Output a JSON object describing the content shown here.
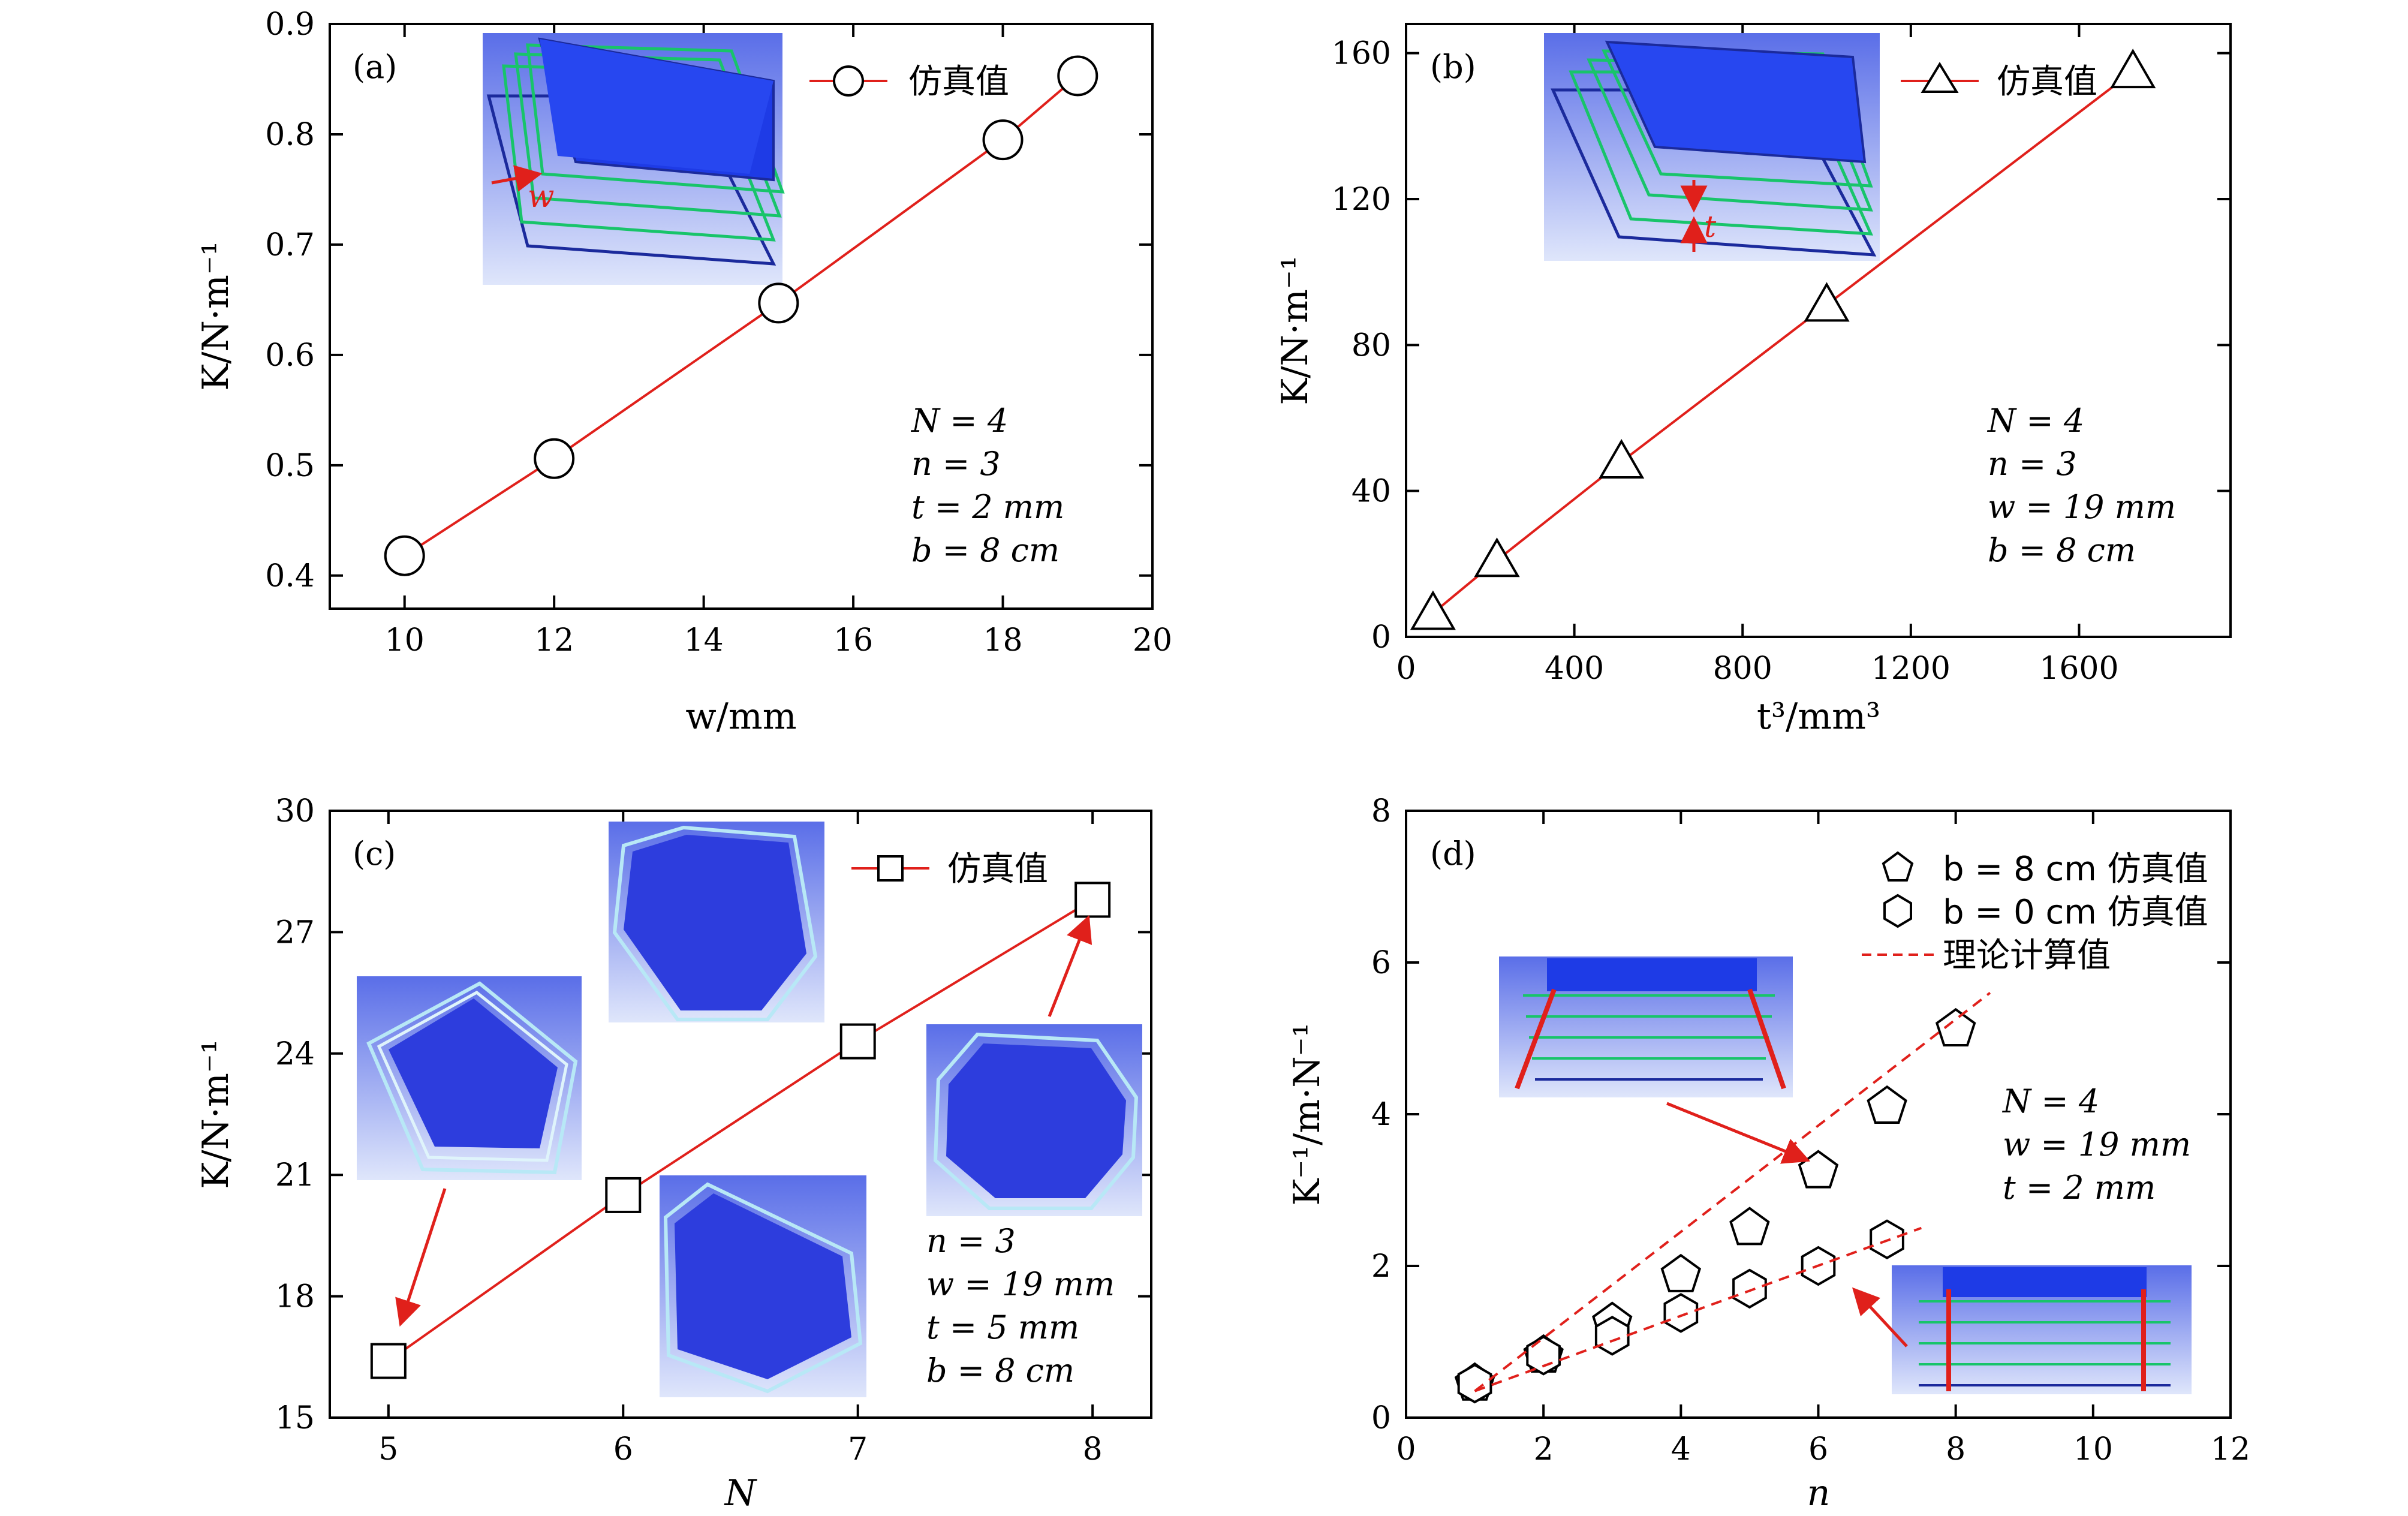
{
  "colors": {
    "line": "#e0201b",
    "inset_bg": "#2f3fd6",
    "inset_edge": "#18c46a"
  },
  "chart_data": [
    {
      "type": "line",
      "panel_label": "(a)",
      "xlabel": "w/mm",
      "ylabel": "K/N·m⁻¹",
      "xlim": [
        9,
        20
      ],
      "ylim": [
        0.37,
        0.9
      ],
      "xticks": [
        10,
        12,
        14,
        16,
        18,
        20
      ],
      "yticks": [
        0.4,
        0.5,
        0.6,
        0.7,
        0.8,
        0.9
      ],
      "xtick_labels": [
        "10",
        "12",
        "14",
        "16",
        "18",
        "20"
      ],
      "ytick_labels": [
        "0.4",
        "0.5",
        "0.6",
        "0.7",
        "0.8",
        "0.9"
      ],
      "series": [
        {
          "name": "仿真值",
          "marker": "circle",
          "x": [
            10,
            12,
            15,
            18,
            19
          ],
          "y": [
            0.418,
            0.506,
            0.647,
            0.795,
            0.853
          ]
        }
      ],
      "legend": [
        "仿真值"
      ],
      "inset_label": "w",
      "annotations": [
        "N = 4",
        "n = 3",
        "t = 2 mm",
        "b = 8 cm"
      ]
    },
    {
      "type": "line",
      "panel_label": "(b)",
      "xlabel": "t³/mm³",
      "ylabel": "K/N·m⁻¹",
      "xlim": [
        0,
        1960
      ],
      "ylim": [
        0,
        168
      ],
      "xticks": [
        0,
        400,
        800,
        1200,
        1600
      ],
      "yticks": [
        0,
        40,
        80,
        120,
        160
      ],
      "xtick_labels": [
        "0",
        "400",
        "800",
        "1200",
        "1600"
      ],
      "ytick_labels": [
        "0",
        "40",
        "80",
        "120",
        "160"
      ],
      "series": [
        {
          "name": "仿真值",
          "marker": "triangle",
          "x": [
            64,
            216,
            512,
            1000,
            1728
          ],
          "y": [
            6.5,
            21,
            48,
            91,
            155
          ]
        }
      ],
      "legend": [
        "仿真值"
      ],
      "inset_label": "t",
      "annotations": [
        "N = 4",
        "n = 3",
        "w = 19 mm",
        "b = 8 cm"
      ]
    },
    {
      "type": "line",
      "panel_label": "(c)",
      "xlabel": "N",
      "ylabel": "K/N·m⁻¹",
      "xlim": [
        4.75,
        8.25
      ],
      "ylim": [
        15,
        30
      ],
      "xticks": [
        5,
        6,
        7,
        8
      ],
      "yticks": [
        15,
        18,
        21,
        24,
        27,
        30
      ],
      "xtick_labels": [
        "5",
        "6",
        "7",
        "8"
      ],
      "ytick_labels": [
        "15",
        "18",
        "21",
        "24",
        "27",
        "30"
      ],
      "series": [
        {
          "name": "仿真值",
          "marker": "square",
          "x": [
            5,
            6,
            7,
            8
          ],
          "y": [
            16.4,
            20.5,
            24.3,
            27.8
          ]
        }
      ],
      "legend": [
        "仿真值"
      ],
      "annotations": [
        "n = 3",
        "w = 19 mm",
        "t = 5 mm",
        "b = 8 cm"
      ]
    },
    {
      "type": "scatter",
      "panel_label": "(d)",
      "xlabel": "n",
      "ylabel": "K⁻¹/m·N⁻¹",
      "xlim": [
        0,
        12
      ],
      "ylim": [
        0,
        8
      ],
      "xticks": [
        0,
        2,
        4,
        6,
        8,
        10,
        12
      ],
      "yticks": [
        0,
        2,
        4,
        6,
        8
      ],
      "xtick_labels": [
        "0",
        "2",
        "4",
        "6",
        "8",
        "10",
        "12"
      ],
      "ytick_labels": [
        "0",
        "2",
        "4",
        "6",
        "8"
      ],
      "series": [
        {
          "name": "b = 8 cm 仿真值",
          "marker": "pentagon",
          "x": [
            1,
            2,
            3,
            4,
            5,
            6,
            7,
            8
          ],
          "y": [
            0.45,
            0.82,
            1.25,
            1.88,
            2.5,
            3.25,
            4.1,
            5.12
          ]
        },
        {
          "name": "b = 0 cm 仿真值",
          "marker": "hexagon",
          "x": [
            1,
            2,
            3,
            4,
            5,
            6,
            7
          ],
          "y": [
            0.45,
            0.82,
            1.08,
            1.38,
            1.7,
            2.0,
            2.35
          ]
        },
        {
          "name": "理论计算值",
          "marker": "dashed",
          "x": [
            1,
            8.5
          ],
          "y": [
            0.35,
            5.6
          ]
        },
        {
          "name": "理论计算值",
          "marker": "dashed",
          "x": [
            1,
            7.5
          ],
          "y": [
            0.35,
            2.5
          ]
        }
      ],
      "legend": [
        "b = 8 cm 仿真值",
        "b = 0 cm 仿真值",
        "理论计算值"
      ],
      "annotations": [
        "N = 4",
        "w = 19 mm",
        "t = 2 mm"
      ]
    }
  ]
}
